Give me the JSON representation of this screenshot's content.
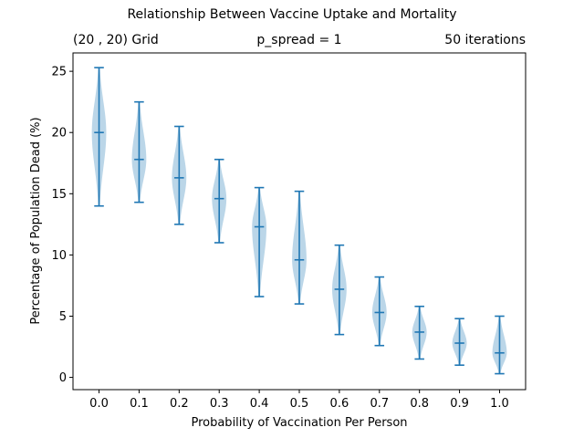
{
  "chart_data": {
    "type": "violin",
    "title": "Relationship Between Vaccine Uptake and Mortality",
    "annotations": {
      "left": "(20 , 20) Grid",
      "center": "p_spread = 1",
      "right": "50 iterations"
    },
    "xlabel": "Probability of Vaccination Per Person",
    "ylabel": "Percentage of Population Dead (%)",
    "categories": [
      "0.0",
      "0.1",
      "0.2",
      "0.3",
      "0.4",
      "0.5",
      "0.6",
      "0.7",
      "0.8",
      "0.9",
      "1.0"
    ],
    "yticks": [
      "0",
      "5",
      "10",
      "15",
      "20",
      "25"
    ],
    "ylim": [
      -1,
      26.5
    ],
    "grid": false,
    "colors": {
      "line": "#1f77b4",
      "fill": "#1f77b4"
    },
    "series": [
      {
        "x": "0.0",
        "min": 14.0,
        "median": 20.0,
        "max": 25.3
      },
      {
        "x": "0.1",
        "min": 14.3,
        "median": 17.8,
        "max": 22.5
      },
      {
        "x": "0.2",
        "min": 12.5,
        "median": 16.3,
        "max": 20.5
      },
      {
        "x": "0.3",
        "min": 11.0,
        "median": 14.6,
        "max": 17.8
      },
      {
        "x": "0.4",
        "min": 6.6,
        "median": 12.3,
        "max": 15.5
      },
      {
        "x": "0.5",
        "min": 6.0,
        "median": 9.6,
        "max": 15.2
      },
      {
        "x": "0.6",
        "min": 3.5,
        "median": 7.2,
        "max": 10.8
      },
      {
        "x": "0.7",
        "min": 2.6,
        "median": 5.3,
        "max": 8.2
      },
      {
        "x": "0.8",
        "min": 1.5,
        "median": 3.7,
        "max": 5.8
      },
      {
        "x": "0.9",
        "min": 1.0,
        "median": 2.8,
        "max": 4.8
      },
      {
        "x": "1.0",
        "min": 0.3,
        "median": 2.0,
        "max": 5.0
      }
    ]
  }
}
